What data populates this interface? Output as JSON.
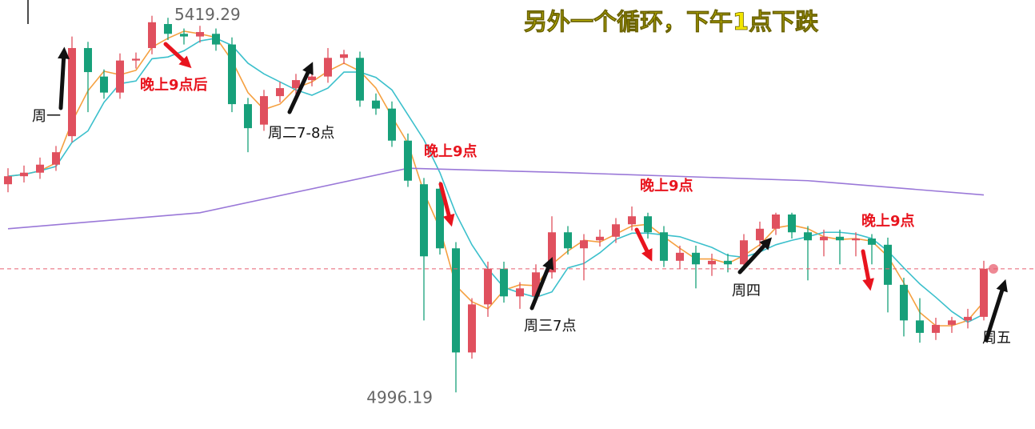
{
  "chart_data": {
    "type": "candlestick",
    "title": "另外一个循环，下午1点下跌",
    "annotations": [
      "周一",
      "晚上9点后",
      "周二7-8点",
      "晚上9点",
      "晚上9点",
      "周三7点",
      "周四",
      "晚上9点",
      "周五"
    ],
    "ylim": [
      4955,
      5437
    ],
    "up_color": "#e0505e",
    "down_color": "#17a07a",
    "candles": [
      [
        5230,
        5248,
        5221,
        5239
      ],
      [
        5239,
        5251,
        5232,
        5243
      ],
      [
        5243,
        5260,
        5236,
        5252
      ],
      [
        5252,
        5273,
        5245,
        5266
      ],
      [
        5284,
        5396,
        5277,
        5383
      ],
      [
        5383,
        5390,
        5311,
        5356
      ],
      [
        5351,
        5359,
        5326,
        5333
      ],
      [
        5333,
        5377,
        5326,
        5369
      ],
      [
        5369,
        5378,
        5360,
        5371
      ],
      [
        5383,
        5419.29,
        5376,
        5412
      ],
      [
        5410,
        5417,
        5392,
        5399
      ],
      [
        5399,
        5405,
        5387,
        5396
      ],
      [
        5396,
        5408,
        5389,
        5401
      ],
      [
        5399,
        5405,
        5380,
        5387
      ],
      [
        5387,
        5395,
        5311,
        5320
      ],
      [
        5320,
        5327,
        5266,
        5293
      ],
      [
        5297,
        5336,
        5290,
        5329
      ],
      [
        5329,
        5345,
        5322,
        5338
      ],
      [
        5338,
        5354,
        5331,
        5347
      ],
      [
        5347,
        5365,
        5340,
        5351
      ],
      [
        5351,
        5383,
        5344,
        5372
      ],
      [
        5372,
        5381,
        5365,
        5376
      ],
      [
        5372,
        5379,
        5317,
        5324
      ],
      [
        5324,
        5332,
        5308,
        5315
      ],
      [
        5315,
        5323,
        5272,
        5279
      ],
      [
        5279,
        5287,
        5227,
        5234
      ],
      [
        5230,
        5237,
        5077,
        5149
      ],
      [
        5225,
        5233,
        5151,
        5158
      ],
      [
        5158,
        5165,
        4996.19,
        5041
      ],
      [
        5041,
        5102,
        5034,
        5095
      ],
      [
        5095,
        5143,
        5081,
        5135
      ],
      [
        5135,
        5143,
        5097,
        5104
      ],
      [
        5104,
        5120,
        5090,
        5113
      ],
      [
        5104,
        5140,
        5097,
        5131
      ],
      [
        5131,
        5194,
        5124,
        5176
      ],
      [
        5176,
        5183,
        5151,
        5158
      ],
      [
        5158,
        5174,
        5122,
        5167
      ],
      [
        5167,
        5179,
        5160,
        5171
      ],
      [
        5171,
        5192,
        5164,
        5185
      ],
      [
        5185,
        5205,
        5178,
        5194
      ],
      [
        5194,
        5198,
        5169,
        5176
      ],
      [
        5176,
        5183,
        5137,
        5144
      ],
      [
        5144,
        5161,
        5135,
        5153
      ],
      [
        5153,
        5161,
        5113,
        5140
      ],
      [
        5140,
        5152,
        5127,
        5144
      ],
      [
        5144,
        5152,
        5131,
        5140
      ],
      [
        5140,
        5174,
        5133,
        5167
      ],
      [
        5167,
        5188,
        5160,
        5180
      ],
      [
        5180,
        5198,
        5173,
        5196
      ],
      [
        5196,
        5198,
        5169,
        5176
      ],
      [
        5176,
        5183,
        5122,
        5167
      ],
      [
        5167,
        5179,
        5149,
        5171
      ],
      [
        5171,
        5179,
        5140,
        5167
      ],
      [
        5167,
        5176,
        5149,
        5169
      ],
      [
        5169,
        5174,
        5140,
        5162
      ],
      [
        5162,
        5170,
        5086,
        5117
      ],
      [
        5117,
        5125,
        5059,
        5077
      ],
      [
        5077,
        5102,
        5052,
        5063
      ],
      [
        5063,
        5080,
        5055,
        5072
      ],
      [
        5072,
        5081,
        5063,
        5077
      ],
      [
        5077,
        5090,
        5068,
        5081
      ],
      [
        5081,
        5144,
        5077,
        5135
      ]
    ],
    "series": [
      {
        "color": "#f5a040",
        "values": [
          5239,
          5241,
          5245,
          5254,
          5300,
          5335,
          5357,
          5353,
          5358,
          5384,
          5394,
          5402,
          5399,
          5395,
          5369,
          5333,
          5314,
          5320,
          5338,
          5345,
          5357,
          5366,
          5357,
          5338,
          5306,
          5276,
          5221,
          5180,
          5116,
          5098,
          5090,
          5111,
          5117,
          5116,
          5140,
          5155,
          5167,
          5165,
          5174,
          5183,
          5185,
          5171,
          5158,
          5146,
          5146,
          5141,
          5150,
          5162,
          5181,
          5184,
          5180,
          5171,
          5168,
          5169,
          5166,
          5149,
          5119,
          5086,
          5071,
          5071,
          5077,
          5098
        ]
      },
      {
        "color": "#3cc0cc",
        "values": [
          5239,
          5241,
          5245,
          5250,
          5277,
          5290,
          5322,
          5343,
          5346,
          5371,
          5373,
          5380,
          5391,
          5394,
          5386,
          5366,
          5354,
          5345,
          5336,
          5330,
          5338,
          5356,
          5356,
          5350,
          5336,
          5308,
          5280,
          5243,
          5197,
          5162,
          5135,
          5114,
          5108,
          5103,
          5109,
          5136,
          5141,
          5153,
          5168,
          5175,
          5175,
          5173,
          5171,
          5165,
          5159,
          5150,
          5148,
          5154,
          5162,
          5167,
          5171,
          5176,
          5176,
          5174,
          5169,
          5155,
          5136,
          5118,
          5103,
          5087,
          5075,
          5084
        ]
      },
      {
        "color": "#9a78d8",
        "x": [
          0,
          12,
          25,
          35,
          50,
          61
        ],
        "values": [
          5180,
          5198,
          5248,
          5243,
          5234,
          5218
        ]
      }
    ]
  }
}
